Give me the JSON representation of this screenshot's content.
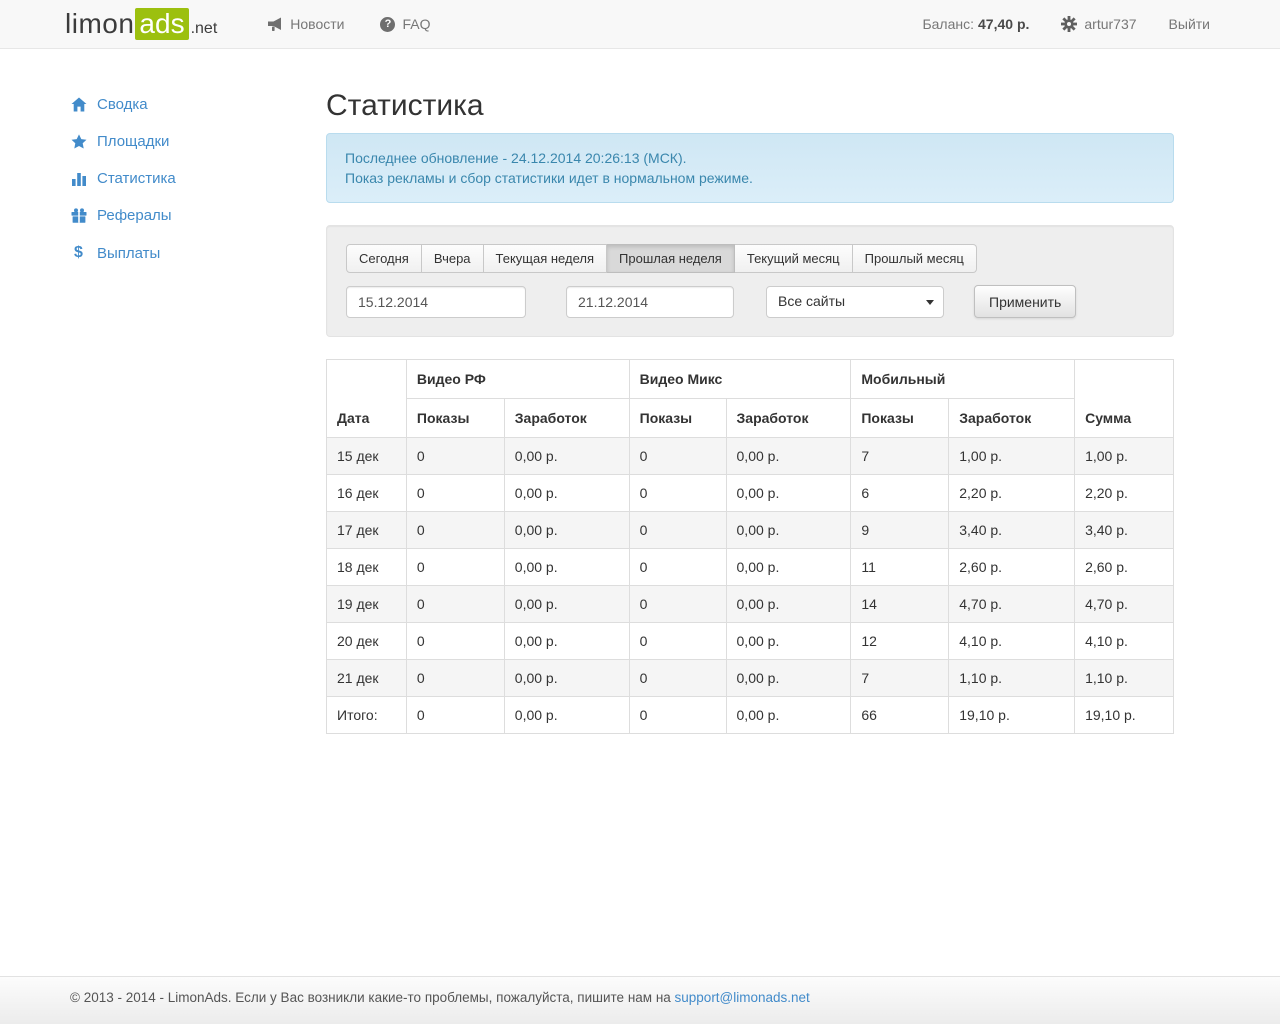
{
  "brand": {
    "limon": "limon",
    "ads": "ads",
    "net": ".net",
    "green": "#9cc00f"
  },
  "header": {
    "nav": [
      {
        "label": "Новости",
        "icon": "megaphone-icon"
      },
      {
        "label": "FAQ",
        "icon": "question-circle-icon"
      }
    ],
    "balance_label": "Баланс:",
    "balance_value": "47,40 р.",
    "username": "artur737",
    "username_icon": "gear-icon",
    "logout_label": "Выйти"
  },
  "sidebar": {
    "items": [
      {
        "label": "Сводка",
        "icon": "home-icon"
      },
      {
        "label": "Площадки",
        "icon": "star-icon"
      },
      {
        "label": "Статистика",
        "icon": "bar-chart-icon"
      },
      {
        "label": "Рефералы",
        "icon": "gift-icon"
      },
      {
        "label": "Выплаты",
        "icon": "dollar-icon"
      }
    ],
    "link_color": "#428bca"
  },
  "page": {
    "title": "Статистика"
  },
  "alert": {
    "line1": "Последнее обновление - 24.12.2014 20:26:13 (МСК).",
    "line2": "Показ рекламы и сбор статистики идет в нормальном режиме.",
    "text_color": "#3a87ad"
  },
  "filters": {
    "tabs": [
      {
        "label": "Сегодня",
        "active": false
      },
      {
        "label": "Вчера",
        "active": false
      },
      {
        "label": "Текущая неделя",
        "active": false
      },
      {
        "label": "Прошлая неделя",
        "active": true
      },
      {
        "label": "Текущий месяц",
        "active": false
      },
      {
        "label": "Прошлый месяц",
        "active": false
      }
    ],
    "date_from": "15.12.2014",
    "date_to": "21.12.2014",
    "site_select_value": "Все сайты",
    "apply_label": "Применить"
  },
  "table": {
    "col_date": "Дата",
    "col_sum": "Сумма",
    "col_shows": "Показы",
    "col_earn": "Заработок",
    "groups": [
      "Видео РФ",
      "Видео Микс",
      "Мобильный"
    ],
    "rows": [
      [
        "15 дек",
        "0",
        "0,00 р.",
        "0",
        "0,00 р.",
        "7",
        "1,00 р.",
        "1,00 р."
      ],
      [
        "16 дек",
        "0",
        "0,00 р.",
        "0",
        "0,00 р.",
        "6",
        "2,20 р.",
        "2,20 р."
      ],
      [
        "17 дек",
        "0",
        "0,00 р.",
        "0",
        "0,00 р.",
        "9",
        "3,40 р.",
        "3,40 р."
      ],
      [
        "18 дек",
        "0",
        "0,00 р.",
        "0",
        "0,00 р.",
        "11",
        "2,60 р.",
        "2,60 р."
      ],
      [
        "19 дек",
        "0",
        "0,00 р.",
        "0",
        "0,00 р.",
        "14",
        "4,70 р.",
        "4,70 р."
      ],
      [
        "20 дек",
        "0",
        "0,00 р.",
        "0",
        "0,00 р.",
        "12",
        "4,10 р.",
        "4,10 р."
      ],
      [
        "21 дек",
        "0",
        "0,00 р.",
        "0",
        "0,00 р.",
        "7",
        "1,10 р.",
        "1,10 р."
      ],
      [
        "Итого:",
        "0",
        "0,00 р.",
        "0",
        "0,00 р.",
        "66",
        "19,10 р.",
        "19,10 р."
      ]
    ]
  },
  "footer": {
    "text": "© 2013 - 2014 - LimonAds. Если у Вас возникли какие-то проблемы, пожалуйста, пишите нам на ",
    "link": "support@limonads.net"
  }
}
